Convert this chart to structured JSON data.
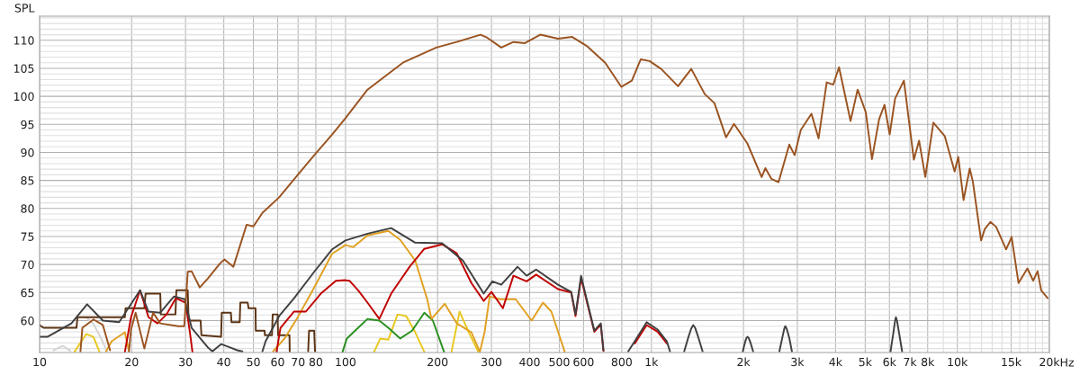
{
  "chart_data": {
    "type": "line",
    "ylabel": "SPL",
    "xlabel": "Hz",
    "log": "x",
    "grid": true,
    "marker": "none",
    "line_style": "solid",
    "xlim": [
      10,
      20000
    ],
    "ylim": [
      54.3,
      114.3
    ],
    "xticks": [
      10,
      20,
      30,
      40,
      50,
      60,
      70,
      80,
      {
        "value": 90,
        "label": null
      },
      100,
      200,
      300,
      400,
      500,
      600,
      {
        "value": 700,
        "label": null
      },
      800,
      {
        "value": 900,
        "label": null
      },
      {
        "value": 1000,
        "label": "1k"
      },
      {
        "value": 2000,
        "label": "2k"
      },
      {
        "value": 3000,
        "label": "3k"
      },
      {
        "value": 4000,
        "label": "4k"
      },
      {
        "value": 5000,
        "label": "5k"
      },
      {
        "value": 6000,
        "label": "6k"
      },
      {
        "value": 7000,
        "label": "7k"
      },
      {
        "value": 8000,
        "label": "8k"
      },
      {
        "value": 9000,
        "label": null
      },
      {
        "value": 10000,
        "label": "10k"
      },
      {
        "value": 11000,
        "label": null
      },
      {
        "value": 12000,
        "label": null
      },
      {
        "value": 13000,
        "label": null
      },
      {
        "value": 14000,
        "label": null
      },
      {
        "value": 15000,
        "label": "15k"
      },
      {
        "value": 16000,
        "label": null
      },
      {
        "value": 17000,
        "label": null
      },
      {
        "value": 18000,
        "label": null
      },
      {
        "value": 19000,
        "label": null
      },
      {
        "value": 20000,
        "label": "20k"
      }
    ],
    "yticks": [
      {
        "value": 55,
        "label": null
      },
      {
        "value": 56,
        "label": null
      },
      {
        "value": 57,
        "label": null
      },
      {
        "value": 58,
        "label": null
      },
      {
        "value": 59,
        "label": null
      },
      60,
      {
        "value": 61,
        "label": null
      },
      {
        "value": 62,
        "label": null
      },
      {
        "value": 63,
        "label": null
      },
      {
        "value": 64,
        "label": null
      },
      65,
      {
        "value": 66,
        "label": null
      },
      {
        "value": 67,
        "label": null
      },
      {
        "value": 68,
        "label": null
      },
      {
        "value": 69,
        "label": null
      },
      70,
      {
        "value": 71,
        "label": null
      },
      {
        "value": 72,
        "label": null
      },
      {
        "value": 73,
        "label": null
      },
      {
        "value": 74,
        "label": null
      },
      75,
      {
        "value": 76,
        "label": null
      },
      {
        "value": 77,
        "label": null
      },
      {
        "value": 78,
        "label": null
      },
      {
        "value": 79,
        "label": null
      },
      80,
      {
        "value": 81,
        "label": null
      },
      {
        "value": 82,
        "label": null
      },
      {
        "value": 83,
        "label": null
      },
      {
        "value": 84,
        "label": null
      },
      85,
      {
        "value": 86,
        "label": null
      },
      {
        "value": 87,
        "label": null
      },
      {
        "value": 88,
        "label": null
      },
      {
        "value": 89,
        "label": null
      },
      90,
      {
        "value": 91,
        "label": null
      },
      {
        "value": 92,
        "label": null
      },
      {
        "value": 93,
        "label": null
      },
      {
        "value": 94,
        "label": null
      },
      95,
      {
        "value": 96,
        "label": null
      },
      {
        "value": 97,
        "label": null
      },
      {
        "value": 98,
        "label": null
      },
      {
        "value": 99,
        "label": null
      },
      100,
      {
        "value": 101,
        "label": null
      },
      {
        "value": 102,
        "label": null
      },
      {
        "value": 103,
        "label": null
      },
      {
        "value": 104,
        "label": null
      },
      105,
      {
        "value": 106,
        "label": null
      },
      {
        "value": 107,
        "label": null
      },
      {
        "value": 108,
        "label": null
      },
      {
        "value": 109,
        "label": null
      },
      110,
      {
        "value": 111,
        "label": null
      },
      {
        "value": 112,
        "label": null
      },
      {
        "value": 113,
        "label": null
      },
      {
        "value": 114,
        "label": null
      }
    ],
    "series": [
      {
        "color": "#d4d4d4",
        "x": [
          11.1,
          11.9,
          12.6,
          null,
          14.2,
          15.0,
          15.9,
          16.6
        ],
        "values": [
          54.7,
          55.5,
          54.6,
          null,
          60.6,
          59.4,
          56.8,
          54.5
        ]
      },
      {
        "color": "#5c3414",
        "x": [
          10,
          10.3,
          13.2,
          13.3,
          19,
          19.1,
          22,
          22.2,
          24.8,
          24.9,
          27.8,
          28.0,
          30.5,
          30.7,
          33.6,
          33.8,
          39.2,
          39.4,
          42.2,
          42.4,
          45.1,
          45.3,
          47.9,
          48.2,
          50.8,
          50.9,
          54.4,
          54.5,
          57.5,
          57.8,
          60,
          60.2,
          65.6,
          65.7,
          null,
          75.5,
          76,
          79,
          79.5
        ],
        "values": [
          59.2,
          58.7,
          58.7,
          60.6,
          60.6,
          62.2,
          62.2,
          64.8,
          64.8,
          61.1,
          61.1,
          65.4,
          65.4,
          60.0,
          60.0,
          57.4,
          57.1,
          61.4,
          61.4,
          59.7,
          59.7,
          63.2,
          63.2,
          62.2,
          62.2,
          58.2,
          58.2,
          57.4,
          57.4,
          61.1,
          61.1,
          57.4,
          57.4,
          54.5,
          null,
          54.5,
          58.2,
          58.2,
          54.5
        ]
      },
      {
        "color": "#e8c820",
        "x": [
          13.0,
          14.2,
          15.0,
          15.7,
          null,
          124,
          130,
          138,
          148,
          158,
          169,
          181,
          null,
          222,
          236,
          253,
          272
        ],
        "values": [
          54.4,
          57.6,
          57.1,
          54.4,
          null,
          54.4,
          56.8,
          56.6,
          61.1,
          60.8,
          57.9,
          54.4,
          null,
          54.4,
          61.6,
          57.9,
          54.4
        ]
      },
      {
        "color": "#2a9020",
        "x": [
          97.8,
          101,
          110,
          118,
          129,
          138,
          151,
          165,
          181,
          193,
          210
        ],
        "values": [
          54.4,
          56.8,
          58.7,
          60.3,
          60.0,
          58.7,
          56.8,
          58.2,
          61.4,
          60.0,
          54.4
        ]
      },
      {
        "color": "#e0a020",
        "x": [
          16.5,
          17.2,
          19.0,
          19.6,
          null,
          58,
          63.2,
          69.3,
          79,
          90.4,
          100,
          106,
          118,
          138,
          151,
          169,
          185,
          191,
          211,
          231,
          258,
          275,
          285,
          296,
          320,
          360,
          406,
          442,
          471,
          521
        ],
        "values": [
          54.5,
          56.3,
          57.9,
          54.5,
          null,
          54.5,
          56.8,
          60.3,
          65.9,
          71.9,
          73.5,
          73.1,
          75.2,
          76.0,
          74.4,
          70.7,
          63.8,
          60.3,
          63.0,
          59.5,
          57.9,
          54.4,
          58.0,
          64.3,
          63.8,
          63.8,
          60.0,
          63.2,
          61.6,
          54.4
        ]
      },
      {
        "color": "#c00000",
        "x": [
          19,
          19.9,
          21.3,
          22.7,
          24.3,
          26.0,
          27.9,
          30.0,
          31.0,
          31.6,
          null,
          59.5,
          61.3,
          67.9,
          74.2,
          83,
          93,
          100,
          103,
          110,
          118,
          129,
          141,
          162,
          181,
          207,
          231,
          258,
          283,
          300,
          327,
          354,
          391,
          420,
          495,
          547,
          565,
          589,
          618,
          651,
          683,
          697,
          null,
          882,
          965,
          1048,
          1123
        ],
        "values": [
          54.4,
          60.6,
          65.4,
          60.6,
          59.5,
          61.1,
          64.0,
          63.2,
          57.9,
          54.4,
          null,
          54.4,
          58.7,
          61.6,
          61.6,
          64.8,
          67.1,
          67.2,
          67.1,
          65.4,
          63.2,
          60.3,
          64.8,
          69.6,
          72.8,
          73.6,
          72.0,
          66.7,
          63.5,
          65.1,
          62.2,
          68.0,
          67.0,
          68.2,
          65.6,
          65.0,
          60.8,
          67.6,
          62.9,
          58.0,
          59.3,
          54.6,
          null,
          55.9,
          59.2,
          58.0,
          55.9
        ]
      },
      {
        "color": "#404040",
        "x": [
          10,
          10.6,
          12.7,
          14.3,
          16.1,
          18.2,
          21.3,
          22.7,
          24.8,
          27.5,
          29.8,
          31.4,
          35.5,
          36.7,
          39.2,
          44.3,
          46,
          null,
          53.5,
          54.8,
          60.7,
          67.9,
          79.0,
          90.4,
          100,
          118,
          141,
          169,
          207,
          242,
          283,
          302,
          323,
          365,
          391,
          420,
          495,
          547,
          565,
          589,
          618,
          651,
          683,
          697,
          null,
          840,
          882,
          965,
          1048,
          1123,
          1150,
          null,
          1280,
          1320,
          1350,
          1370,
          1390,
          1420,
          1470,
          null,
          1990,
          2020,
          2045,
          2060,
          2080,
          2110,
          2150,
          null,
          2620,
          2680,
          2720,
          2740,
          2770,
          2820,
          2880,
          null,
          6050,
          6180,
          6260,
          6300,
          6350,
          6450,
          6600
        ],
        "values": [
          57.1,
          57.1,
          59.5,
          62.9,
          60.0,
          59.7,
          65.4,
          61.6,
          61.4,
          64.3,
          63.8,
          58.7,
          55.2,
          54.5,
          55.8,
          54.7,
          54.5,
          null,
          54.5,
          56.3,
          60.8,
          64.0,
          68.7,
          72.7,
          74.3,
          75.5,
          76.5,
          73.9,
          73.8,
          70.7,
          64.8,
          67.0,
          66.4,
          69.6,
          68.0,
          69.1,
          66.4,
          65.1,
          61.1,
          68.0,
          63.2,
          58.2,
          59.5,
          54.7,
          null,
          54.5,
          56.3,
          59.7,
          58.4,
          56.3,
          54.5,
          null,
          54.5,
          57.0,
          58.6,
          59.2,
          58.7,
          57.2,
          54.5,
          null,
          54.5,
          56.0,
          56.9,
          57.1,
          56.9,
          56.0,
          54.5,
          null,
          54.5,
          57.0,
          58.6,
          59.0,
          58.5,
          57.0,
          54.5,
          null,
          54.5,
          57.8,
          60.0,
          60.6,
          60.0,
          57.8,
          54.5
        ]
      },
      {
        "color": "#9a5320",
        "x": [
          13.6,
          13.8,
          15.0,
          16.1,
          17.0,
          null,
          19.6,
          19.9,
          20.6,
          22.0,
          23.5,
          24.8,
          28.4,
          29.7,
          30.5,
          31.4,
          33.4,
          35.5,
          38.9,
          40.2,
          43.0,
          47.5,
          50,
          53.5,
          60.7,
          67.9,
          79,
          90.4,
          100,
          118,
          154,
          198,
          231,
          276,
          290,
          323,
          354,
          386,
          433,
          495,
          551,
          618,
          706,
          797,
          863,
          923,
          986,
          1076,
          1222,
          1350,
          1494,
          1607,
          1754,
          1862,
          2059,
          2293,
          2358,
          2467,
          2604,
          2823,
          2939,
          3079,
          3336,
          3520,
          3741,
          3931,
          4105,
          4477,
          4722,
          5020,
          5260,
          5550,
          5780,
          6010,
          6260,
          6690,
          7210,
          7500,
          7860,
          8350,
          9100,
          9800,
          10070,
          10480,
          10980,
          11240,
          11960,
          12290,
          12830,
          13400,
          14440,
          15050,
          15850,
          16950,
          17700,
          18300,
          18800,
          19750
        ],
        "values": [
          54.5,
          58.7,
          60.2,
          59.2,
          54.7,
          null,
          54.5,
          58.4,
          61.4,
          55.0,
          61.4,
          59.5,
          59.0,
          59.0,
          68.7,
          68.8,
          65.9,
          67.5,
          70.2,
          70.9,
          69.6,
          77.1,
          76.8,
          79.2,
          82.0,
          85.2,
          89.5,
          93.2,
          96.1,
          101.2,
          106.0,
          108.7,
          109.7,
          111.0,
          110.5,
          108.7,
          109.7,
          109.5,
          111.0,
          110.3,
          110.6,
          108.9,
          106.0,
          101.7,
          102.8,
          106.6,
          106.3,
          104.9,
          101.8,
          104.9,
          100.4,
          98.8,
          92.7,
          95.1,
          91.6,
          85.6,
          87.2,
          85.3,
          84.7,
          91.4,
          89.5,
          94.0,
          96.9,
          92.5,
          102.5,
          102.1,
          105.2,
          95.6,
          101.2,
          97.2,
          88.8,
          95.9,
          98.5,
          93.2,
          99.6,
          102.8,
          88.7,
          92.1,
          85.6,
          95.3,
          92.9,
          86.6,
          89.2,
          81.5,
          87.1,
          84.8,
          74.3,
          76.3,
          77.6,
          76.7,
          72.7,
          74.9,
          66.7,
          69.3,
          67.1,
          68.8,
          65.4,
          64.0
        ]
      }
    ]
  }
}
